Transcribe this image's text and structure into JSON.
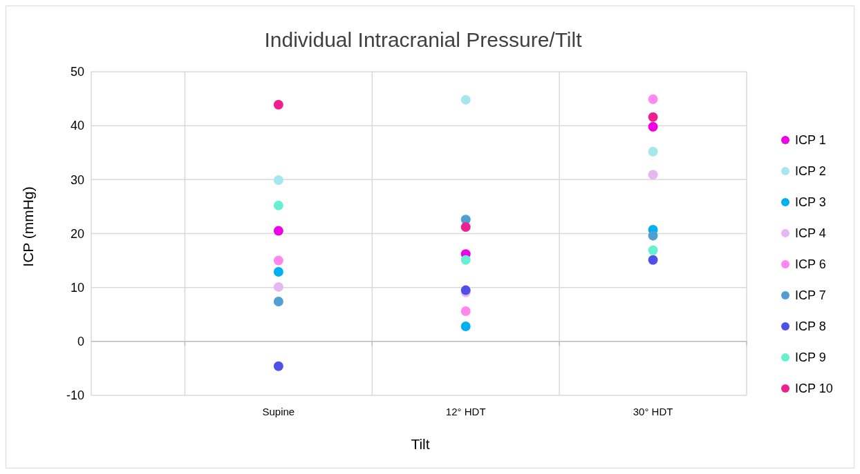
{
  "chart_data": {
    "type": "scatter",
    "title": "Individual Intracranial Pressure/Tilt",
    "xlabel": "Tilt",
    "ylabel": "ICP (mmHg)",
    "categories": [
      "Supine",
      "12° HDT",
      "30° HDT"
    ],
    "ylim": [
      -10,
      50
    ],
    "yticks": [
      -10,
      0,
      10,
      20,
      30,
      40,
      50
    ],
    "grid": true,
    "legend": "right",
    "marker": "circle",
    "series": [
      {
        "name": "ICP 1",
        "color": "#ee00e6",
        "values": [
          20.5,
          16.2,
          39.8
        ]
      },
      {
        "name": "ICP 2",
        "color": "#a6e6ee",
        "values": [
          29.9,
          44.8,
          35.2
        ]
      },
      {
        "name": "ICP 3",
        "color": "#00b0f0",
        "values": [
          12.9,
          2.8,
          20.7
        ]
      },
      {
        "name": "ICP 4",
        "color": "#e6b8f0",
        "values": [
          10.1,
          9.1,
          30.9
        ]
      },
      {
        "name": "ICP 6",
        "color": "#ff88ee",
        "values": [
          15.0,
          5.6,
          44.9
        ]
      },
      {
        "name": "ICP 7",
        "color": "#4f9fd0",
        "values": [
          7.4,
          22.6,
          19.6
        ]
      },
      {
        "name": "ICP 8",
        "color": "#5050e8",
        "values": [
          -4.6,
          9.5,
          15.1
        ]
      },
      {
        "name": "ICP 9",
        "color": "#66f0d2",
        "values": [
          25.2,
          15.1,
          16.9
        ]
      },
      {
        "name": "ICP 10",
        "color": "#ee2090",
        "values": [
          43.9,
          21.2,
          41.6
        ]
      }
    ]
  }
}
